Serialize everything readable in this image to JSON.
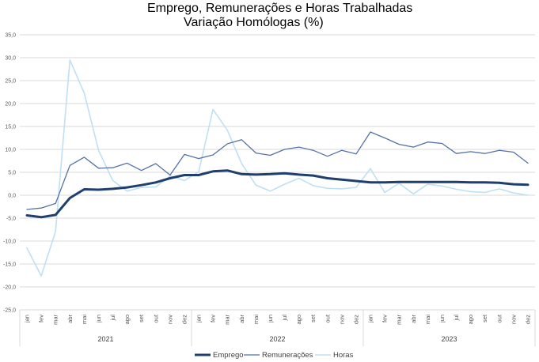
{
  "title": {
    "line1": "Emprego, Remunerações e Horas Trabalhadas",
    "line2": "Variação Homólogas (%)"
  },
  "chart_data": {
    "type": "line",
    "title": "Emprego, Remunerações e Horas Trabalhadas Variação Homólogas (%)",
    "ylim": [
      -25,
      35
    ],
    "yticks": [
      "35,0",
      "30,0",
      "25,0",
      "20,0",
      "15,0",
      "10,0",
      "5,0",
      "0,0",
      "-5,0",
      "-10,0",
      "-15,0",
      "-20,0",
      "-25,0"
    ],
    "ytick_values": [
      35,
      30,
      25,
      20,
      15,
      10,
      5,
      0,
      -5,
      -10,
      -15,
      -20,
      -25
    ],
    "grid": true,
    "legend_position": "bottom",
    "years": [
      "2021",
      "2022",
      "2023"
    ],
    "months": [
      "jan",
      "fev",
      "mar",
      "abr",
      "mai",
      "jun",
      "jul",
      "ago",
      "set",
      "out",
      "nov",
      "dez"
    ],
    "colors": {
      "Emprego": "#1f3f6e",
      "Remunerações": "#5572a6",
      "Horas": "#bfe0f2"
    },
    "series": [
      {
        "name": "Emprego",
        "values": [
          -4.4,
          -4.8,
          -4.3,
          -0.6,
          1.3,
          1.2,
          1.4,
          1.7,
          2.2,
          2.8,
          3.7,
          4.4,
          4.4,
          5.2,
          5.4,
          4.6,
          4.5,
          4.6,
          4.8,
          4.5,
          4.3,
          3.7,
          3.4,
          3.1,
          2.8,
          2.8,
          2.9,
          2.9,
          2.9,
          2.9,
          2.9,
          2.8,
          2.8,
          2.7,
          2.4,
          2.3
        ]
      },
      {
        "name": "Remunerações",
        "values": [
          -3.1,
          -2.8,
          -1.8,
          6.5,
          8.3,
          5.9,
          6.0,
          7.0,
          5.4,
          6.9,
          4.4,
          8.9,
          8.0,
          8.8,
          11.2,
          12.1,
          9.2,
          8.7,
          10.0,
          10.5,
          9.8,
          8.5,
          9.8,
          9.0,
          13.8,
          12.5,
          11.1,
          10.5,
          11.6,
          11.3,
          9.1,
          9.5,
          9.1,
          9.8,
          9.4,
          7.0
        ]
      },
      {
        "name": "Horas",
        "values": [
          -11.5,
          -17.6,
          -7.9,
          29.5,
          22.3,
          9.8,
          3.2,
          0.9,
          1.7,
          1.8,
          4.2,
          3.2,
          5.1,
          18.7,
          14.2,
          6.9,
          2.2,
          0.9,
          2.4,
          3.7,
          2.1,
          1.5,
          1.4,
          1.7,
          5.8,
          0.6,
          2.6,
          0.3,
          2.4,
          2.0,
          1.3,
          0.8,
          0.6,
          1.4,
          0.5,
          0.0
        ]
      }
    ]
  }
}
